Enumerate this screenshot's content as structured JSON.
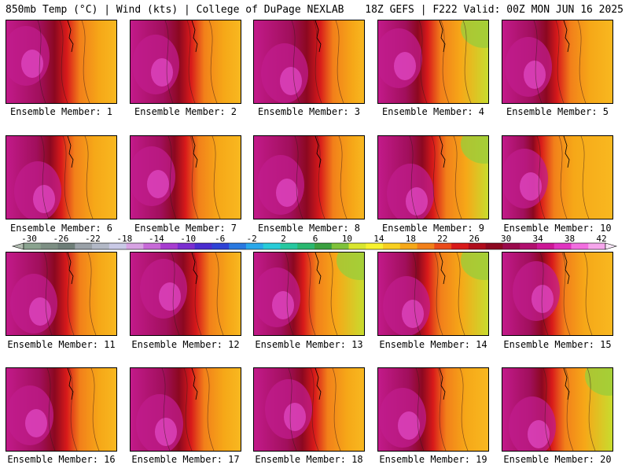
{
  "header": {
    "left": "850mb Temp (°C) | Wind (kts) | College of DuPage NEXLAB",
    "right": "18Z GEFS | F222 Valid: 00Z MON JUN 16 2025"
  },
  "members": [
    {
      "label": "Ensemble Member: 1"
    },
    {
      "label": "Ensemble Member: 2"
    },
    {
      "label": "Ensemble Member: 3"
    },
    {
      "label": "Ensemble Member: 4"
    },
    {
      "label": "Ensemble Member: 5"
    },
    {
      "label": "Ensemble Member: 6"
    },
    {
      "label": "Ensemble Member: 7"
    },
    {
      "label": "Ensemble Member: 8"
    },
    {
      "label": "Ensemble Member: 9"
    },
    {
      "label": "Ensemble Member: 10"
    },
    {
      "label": "Ensemble Member: 11"
    },
    {
      "label": "Ensemble Member: 12"
    },
    {
      "label": "Ensemble Member: 13"
    },
    {
      "label": "Ensemble Member: 14"
    },
    {
      "label": "Ensemble Member: 15"
    },
    {
      "label": "Ensemble Member: 16"
    },
    {
      "label": "Ensemble Member: 17"
    },
    {
      "label": "Ensemble Member: 18"
    },
    {
      "label": "Ensemble Member: 19"
    },
    {
      "label": "Ensemble Member: 20"
    }
  ],
  "colorbar": {
    "ticks": [
      "-30",
      "-26",
      "-22",
      "-18",
      "-14",
      "-10",
      "-6",
      "-2",
      "2",
      "6",
      "10",
      "14",
      "18",
      "22",
      "26",
      "30",
      "34",
      "38",
      "42"
    ],
    "colors": [
      "#8aa38f",
      "#7d8f84",
      "#6e7e78",
      "#9aa1a8",
      "#b2b8c6",
      "#c9c9e6",
      "#d7a3e3",
      "#c76ad8",
      "#a73dd0",
      "#7b2ed0",
      "#4a2ccf",
      "#2f43d6",
      "#2a79e0",
      "#2aa8ea",
      "#28ccd8",
      "#26c8a0",
      "#2ab870",
      "#3aa040",
      "#7fc23a",
      "#d9e62e",
      "#f8f22e",
      "#f8d020",
      "#f6a818",
      "#f2801a",
      "#ea4a1a",
      "#d81a1a",
      "#b00c1c",
      "#8c0820",
      "#9a0a4c",
      "#b0106e",
      "#cc1896",
      "#e034c0",
      "#f26ee0",
      "#f6a6ec"
    ]
  }
}
